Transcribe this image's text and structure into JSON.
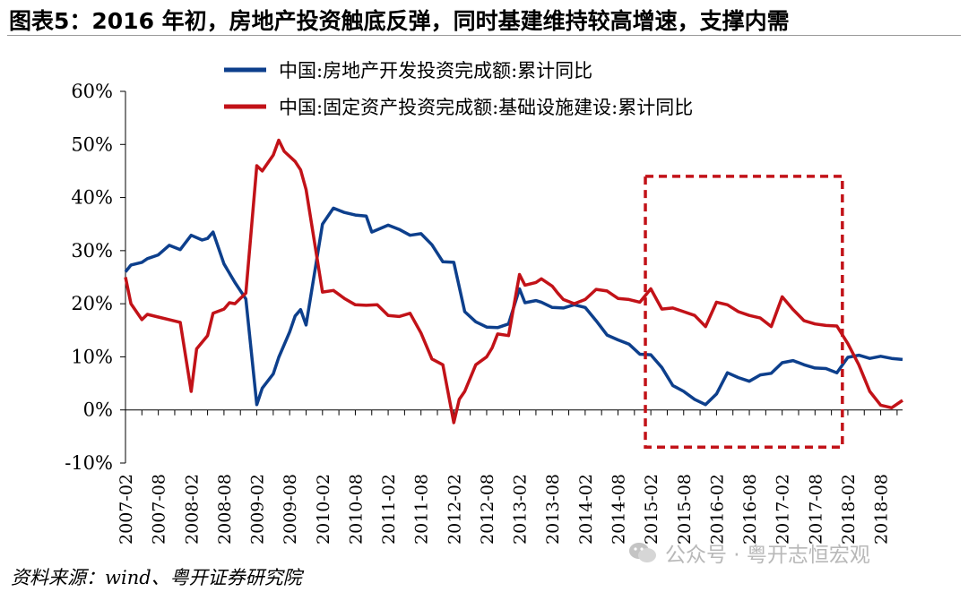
{
  "title": "图表5：2016 年初，房地产投资触底反弹，同时基建维持较高增速，支撑内需",
  "source": "资料来源：wind、粤开证券研究院",
  "watermark": "公众号 · 粤开志恒宏观",
  "colors": {
    "real_estate": "#0d3f8c",
    "infrastructure": "#c21218",
    "highlight_box": "#c21218"
  },
  "chart_data": {
    "type": "line",
    "title": "图表5：2016 年初，房地产投资触底反弹，同时基建维持较高增速，支撑内需",
    "ylim": [
      -10,
      60
    ],
    "yticks": [
      -10,
      0,
      10,
      20,
      30,
      40,
      50,
      60
    ],
    "ytick_labels": [
      "-10%",
      "0%",
      "10%",
      "20%",
      "30%",
      "40%",
      "50%",
      "60%"
    ],
    "xticks": [
      "2007-02",
      "2007-08",
      "2008-02",
      "2008-08",
      "2009-02",
      "2009-08",
      "2010-02",
      "2010-08",
      "2011-02",
      "2011-08",
      "2012-02",
      "2012-08",
      "2013-02",
      "2013-08",
      "2014-02",
      "2014-08",
      "2015-02",
      "2015-08",
      "2016-02",
      "2016-08",
      "2017-02",
      "2017-08",
      "2018-02",
      "2018-08"
    ],
    "legend_position": "top",
    "grid": false,
    "highlight": {
      "x_from": "2015-01",
      "x_to": "2018-01",
      "y_from": -7,
      "y_to": 44,
      "style": "dashed-box"
    },
    "series": [
      {
        "name": "中国:房地产开发投资完成额:累计同比",
        "points": [
          [
            "2007-02",
            26
          ],
          [
            "2007-03",
            27.3
          ],
          [
            "2007-05",
            27.8
          ],
          [
            "2007-06",
            28.5
          ],
          [
            "2007-08",
            29.2
          ],
          [
            "2007-10",
            31
          ],
          [
            "2007-12",
            30.2
          ],
          [
            "2008-02",
            32.9
          ],
          [
            "2008-04",
            32
          ],
          [
            "2008-05",
            32.3
          ],
          [
            "2008-06",
            33.5
          ],
          [
            "2008-08",
            27.5
          ],
          [
            "2008-10",
            24
          ],
          [
            "2008-12",
            20.9
          ],
          [
            "2009-02",
            1
          ],
          [
            "2009-03",
            4.1
          ],
          [
            "2009-05",
            6.8
          ],
          [
            "2009-06",
            9.9
          ],
          [
            "2009-08",
            14.7
          ],
          [
            "2009-09",
            17.7
          ],
          [
            "2009-10",
            18.9
          ],
          [
            "2009-11",
            16
          ],
          [
            "2010-02",
            35
          ],
          [
            "2010-04",
            38
          ],
          [
            "2010-06",
            37.2
          ],
          [
            "2010-08",
            36.7
          ],
          [
            "2010-10",
            36.5
          ],
          [
            "2010-11",
            33.5
          ],
          [
            "2011-02",
            34.8
          ],
          [
            "2011-04",
            34
          ],
          [
            "2011-06",
            32.9
          ],
          [
            "2011-08",
            33.2
          ],
          [
            "2011-10",
            31.1
          ],
          [
            "2011-12",
            27.9
          ],
          [
            "2012-02",
            27.8
          ],
          [
            "2012-04",
            18.5
          ],
          [
            "2012-06",
            16.6
          ],
          [
            "2012-08",
            15.6
          ],
          [
            "2012-10",
            15.5
          ],
          [
            "2012-12",
            16.2
          ],
          [
            "2013-02",
            22.8
          ],
          [
            "2013-03",
            20.2
          ],
          [
            "2013-05",
            20.6
          ],
          [
            "2013-06",
            20.3
          ],
          [
            "2013-08",
            19.3
          ],
          [
            "2013-10",
            19.2
          ],
          [
            "2013-12",
            19.8
          ],
          [
            "2014-02",
            19.3
          ],
          [
            "2014-04",
            16.8
          ],
          [
            "2014-06",
            14.1
          ],
          [
            "2014-08",
            13.2
          ],
          [
            "2014-10",
            12.4
          ],
          [
            "2014-12",
            10.5
          ],
          [
            "2015-02",
            10.4
          ],
          [
            "2015-04",
            8
          ],
          [
            "2015-06",
            4.6
          ],
          [
            "2015-08",
            3.5
          ],
          [
            "2015-10",
            2
          ],
          [
            "2015-12",
            1
          ],
          [
            "2016-02",
            3
          ],
          [
            "2016-04",
            7
          ],
          [
            "2016-06",
            6.1
          ],
          [
            "2016-08",
            5.4
          ],
          [
            "2016-10",
            6.6
          ],
          [
            "2016-12",
            6.9
          ],
          [
            "2017-02",
            8.9
          ],
          [
            "2017-04",
            9.3
          ],
          [
            "2017-06",
            8.5
          ],
          [
            "2017-08",
            7.9
          ],
          [
            "2017-10",
            7.8
          ],
          [
            "2017-12",
            7
          ],
          [
            "2018-02",
            9.9
          ],
          [
            "2018-04",
            10.3
          ],
          [
            "2018-06",
            9.7
          ],
          [
            "2018-08",
            10.1
          ],
          [
            "2018-10",
            9.7
          ],
          [
            "2018-12",
            9.5
          ]
        ]
      },
      {
        "name": "中国:固定资产投资完成额:基础设施建设:累计同比",
        "points": [
          [
            "2007-02",
            25
          ],
          [
            "2007-03",
            20
          ],
          [
            "2007-05",
            17
          ],
          [
            "2007-06",
            18
          ],
          [
            "2007-08",
            17.5
          ],
          [
            "2007-10",
            17
          ],
          [
            "2007-12",
            16.5
          ],
          [
            "2008-02",
            3.5
          ],
          [
            "2008-03",
            11.5
          ],
          [
            "2008-05",
            14
          ],
          [
            "2008-06",
            18.2
          ],
          [
            "2008-08",
            19
          ],
          [
            "2008-09",
            20.2
          ],
          [
            "2008-10",
            20
          ],
          [
            "2008-12",
            22
          ],
          [
            "2009-02",
            46
          ],
          [
            "2009-03",
            45
          ],
          [
            "2009-05",
            48
          ],
          [
            "2009-06",
            50.8
          ],
          [
            "2009-07",
            48.7
          ],
          [
            "2009-09",
            46.8
          ],
          [
            "2009-10",
            45.2
          ],
          [
            "2009-11",
            41.5
          ],
          [
            "2010-02",
            22.2
          ],
          [
            "2010-04",
            22.5
          ],
          [
            "2010-06",
            21
          ],
          [
            "2010-08",
            19.8
          ],
          [
            "2010-10",
            19.7
          ],
          [
            "2010-12",
            19.8
          ],
          [
            "2011-02",
            17.8
          ],
          [
            "2011-04",
            17.6
          ],
          [
            "2011-06",
            18.2
          ],
          [
            "2011-08",
            14.5
          ],
          [
            "2011-10",
            9.6
          ],
          [
            "2011-12",
            8.5
          ],
          [
            "2012-02",
            -2.4
          ],
          [
            "2012-03",
            2
          ],
          [
            "2012-04",
            3.5
          ],
          [
            "2012-05",
            6
          ],
          [
            "2012-06",
            8.5
          ],
          [
            "2012-08",
            10
          ],
          [
            "2012-09",
            11.7
          ],
          [
            "2012-10",
            14.3
          ],
          [
            "2012-12",
            14
          ],
          [
            "2013-02",
            25.5
          ],
          [
            "2013-03",
            23.5
          ],
          [
            "2013-05",
            24
          ],
          [
            "2013-06",
            24.7
          ],
          [
            "2013-08",
            23.3
          ],
          [
            "2013-09",
            22
          ],
          [
            "2013-10",
            20.8
          ],
          [
            "2013-12",
            20
          ],
          [
            "2014-02",
            20.8
          ],
          [
            "2014-04",
            22.7
          ],
          [
            "2014-06",
            22.4
          ],
          [
            "2014-08",
            21
          ],
          [
            "2014-10",
            20.8
          ],
          [
            "2014-12",
            20.3
          ],
          [
            "2015-02",
            22.8
          ],
          [
            "2015-04",
            19
          ],
          [
            "2015-06",
            19.2
          ],
          [
            "2015-08",
            18.5
          ],
          [
            "2015-10",
            17.8
          ],
          [
            "2015-12",
            15.7
          ],
          [
            "2016-02",
            20.3
          ],
          [
            "2016-04",
            19.8
          ],
          [
            "2016-06",
            18.5
          ],
          [
            "2016-08",
            17.8
          ],
          [
            "2016-10",
            17.3
          ],
          [
            "2016-12",
            15.7
          ],
          [
            "2017-02",
            21.3
          ],
          [
            "2017-04",
            18.9
          ],
          [
            "2017-06",
            16.8
          ],
          [
            "2017-08",
            16.2
          ],
          [
            "2017-10",
            15.9
          ],
          [
            "2017-12",
            15.8
          ],
          [
            "2018-02",
            12.5
          ],
          [
            "2018-04",
            8.5
          ],
          [
            "2018-06",
            3.5
          ],
          [
            "2018-08",
            0.9
          ],
          [
            "2018-10",
            0.4
          ],
          [
            "2018-12",
            1.8
          ]
        ]
      }
    ]
  }
}
